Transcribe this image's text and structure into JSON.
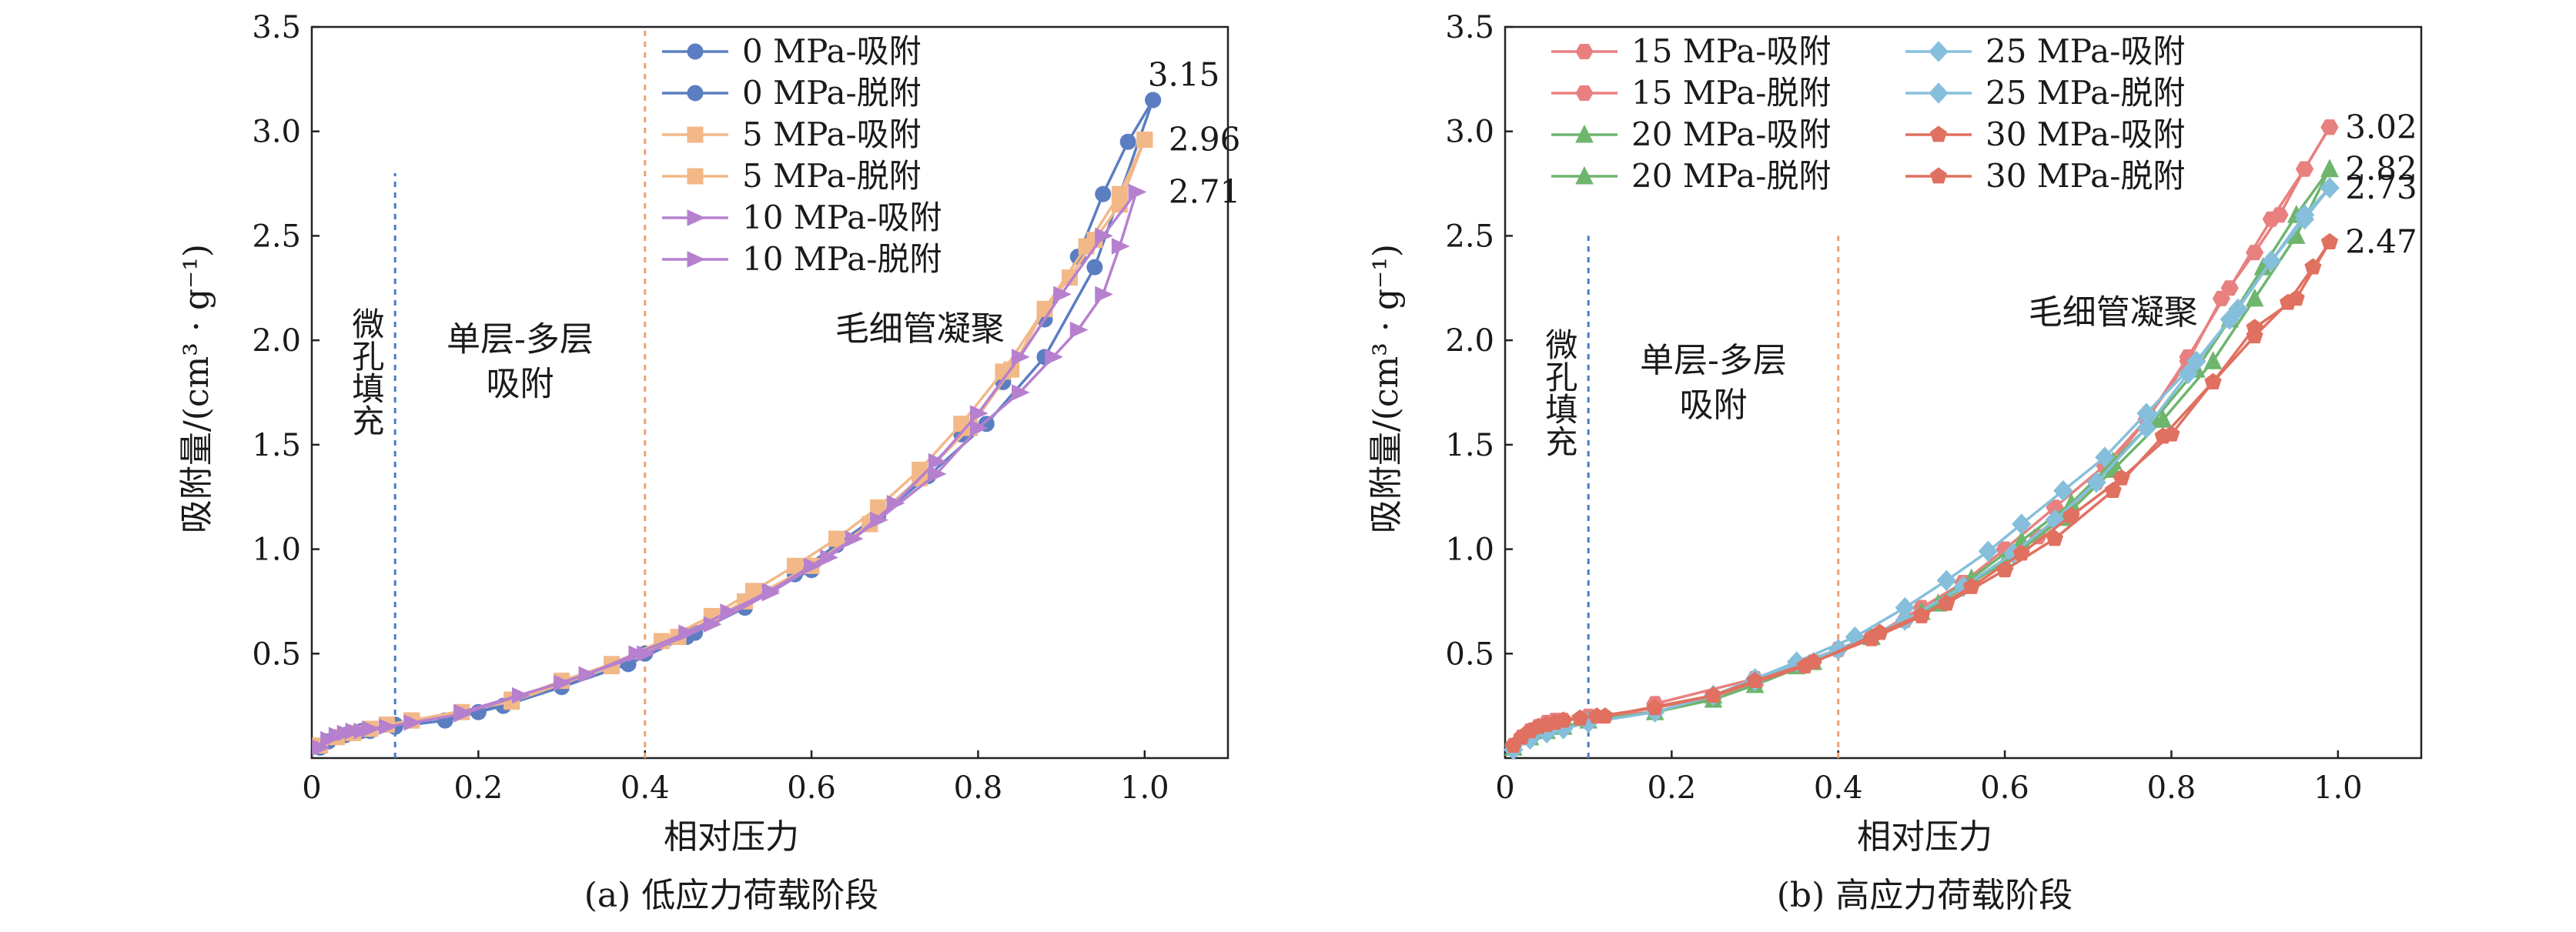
{
  "chart_data": [
    {
      "type": "line",
      "panel_label": "(a) 低应力荷载阶段",
      "xlabel": "相对压力",
      "ylabel": "吸附量/(cm³ · g⁻¹)",
      "xlim": [
        0,
        1.1
      ],
      "ylim": [
        0,
        3.5
      ],
      "x_ticks": [
        0,
        0.2,
        0.4,
        0.6,
        0.8,
        1.0
      ],
      "x_tick_labels": [
        "0",
        "0.2",
        "0.4",
        "0.6",
        "0.8",
        "1.0"
      ],
      "y_ticks": [
        0.5,
        1.0,
        1.5,
        2.0,
        2.5,
        3.0,
        3.5
      ],
      "y_tick_labels": [
        "0.5",
        "1.0",
        "1.5",
        "2.0",
        "2.5",
        "3.0",
        "3.5"
      ],
      "grid": false,
      "legend_position": "top-center",
      "legend_columns": 1,
      "vlines": [
        {
          "x": 0.1,
          "color": "#4a7bc8",
          "y_top": 2.8
        },
        {
          "x": 0.4,
          "color": "#f0a070",
          "y_top": 3.5
        }
      ],
      "region_labels": [
        {
          "lines": [
            "微孔填充"
          ],
          "x": 0.065,
          "y": 1.85,
          "vertical": true
        },
        {
          "lines": [
            "单层-多层",
            "吸附"
          ],
          "x": 0.25,
          "y": 1.95,
          "vertical": false
        },
        {
          "lines": [
            "毛细管凝聚"
          ],
          "x": 0.73,
          "y": 2.0,
          "vertical": false
        }
      ],
      "end_labels": [
        {
          "text": "3.15",
          "x": 1.0,
          "y": 3.27
        },
        {
          "text": "2.96",
          "x": 1.025,
          "y": 2.96
        },
        {
          "text": "2.71",
          "x": 1.025,
          "y": 2.71
        }
      ],
      "series": [
        {
          "name": "0 MPa-吸附",
          "color": "#5b7ec2",
          "marker": "circle",
          "x": [
            0.01,
            0.02,
            0.03,
            0.04,
            0.05,
            0.06,
            0.07,
            0.1,
            0.16,
            0.23,
            0.3,
            0.38,
            0.45,
            0.52,
            0.58,
            0.63,
            0.68,
            0.73,
            0.78,
            0.83,
            0.88,
            0.92,
            0.95,
            0.98,
            1.01
          ],
          "y": [
            0.05,
            0.08,
            0.1,
            0.11,
            0.12,
            0.13,
            0.13,
            0.15,
            0.18,
            0.25,
            0.34,
            0.45,
            0.58,
            0.72,
            0.88,
            1.02,
            1.16,
            1.34,
            1.55,
            1.8,
            2.1,
            2.4,
            2.7,
            2.95,
            3.15
          ]
        },
        {
          "name": "0 MPa-脱附",
          "color": "#5b7ec2",
          "marker": "circle",
          "x": [
            0.1,
            0.2,
            0.3,
            0.4,
            0.46,
            0.52,
            0.6,
            0.67,
            0.74,
            0.81,
            0.88,
            0.94,
            1.01
          ],
          "y": [
            0.16,
            0.22,
            0.35,
            0.5,
            0.6,
            0.75,
            0.9,
            1.12,
            1.35,
            1.6,
            1.92,
            2.35,
            3.15
          ]
        },
        {
          "name": "5 MPa-吸附",
          "color": "#f2b888",
          "marker": "square",
          "x": [
            0.01,
            0.03,
            0.05,
            0.07,
            0.09,
            0.12,
            0.18,
            0.24,
            0.3,
            0.36,
            0.42,
            0.48,
            0.53,
            0.58,
            0.63,
            0.68,
            0.73,
            0.78,
            0.83,
            0.88,
            0.93,
            0.97,
            1.0
          ],
          "y": [
            0.06,
            0.1,
            0.12,
            0.14,
            0.16,
            0.18,
            0.22,
            0.28,
            0.37,
            0.45,
            0.56,
            0.68,
            0.8,
            0.92,
            1.05,
            1.2,
            1.38,
            1.6,
            1.85,
            2.15,
            2.45,
            2.7,
            2.96
          ]
        },
        {
          "name": "5 MPa-脱附",
          "color": "#f2b888",
          "marker": "square",
          "x": [
            0.12,
            0.24,
            0.36,
            0.44,
            0.52,
            0.6,
            0.67,
            0.73,
            0.79,
            0.84,
            0.88,
            0.91,
            0.94,
            0.97,
            1.0
          ],
          "y": [
            0.18,
            0.27,
            0.44,
            0.58,
            0.75,
            0.92,
            1.12,
            1.34,
            1.58,
            1.86,
            2.15,
            2.3,
            2.48,
            2.65,
            2.96
          ]
        },
        {
          "name": "10 MPa-吸附",
          "color": "#b680cf",
          "marker": "triangle-right",
          "x": [
            0.01,
            0.02,
            0.03,
            0.04,
            0.05,
            0.06,
            0.07,
            0.09,
            0.12,
            0.18,
            0.25,
            0.33,
            0.39,
            0.45,
            0.5,
            0.55,
            0.6,
            0.65,
            0.7,
            0.75,
            0.8,
            0.85,
            0.9,
            0.95,
            0.99
          ],
          "y": [
            0.05,
            0.09,
            0.11,
            0.12,
            0.13,
            0.13,
            0.14,
            0.15,
            0.17,
            0.21,
            0.3,
            0.4,
            0.5,
            0.6,
            0.7,
            0.8,
            0.92,
            1.05,
            1.22,
            1.42,
            1.65,
            1.92,
            2.22,
            2.5,
            2.71
          ]
        },
        {
          "name": "10 MPa-脱附",
          "color": "#b680cf",
          "marker": "triangle-right",
          "x": [
            0.18,
            0.3,
            0.4,
            0.48,
            0.55,
            0.62,
            0.68,
            0.75,
            0.8,
            0.85,
            0.89,
            0.92,
            0.95,
            0.97,
            0.99
          ],
          "y": [
            0.22,
            0.36,
            0.5,
            0.64,
            0.79,
            0.96,
            1.14,
            1.36,
            1.58,
            1.75,
            1.92,
            2.05,
            2.22,
            2.45,
            2.71
          ]
        }
      ]
    },
    {
      "type": "line",
      "panel_label": "(b) 高应力荷载阶段",
      "xlabel": "相对压力",
      "ylabel": "吸附量/(cm³ · g⁻¹)",
      "xlim": [
        0,
        1.1
      ],
      "ylim": [
        0,
        3.5
      ],
      "x_ticks": [
        0,
        0.2,
        0.4,
        0.6,
        0.8,
        1.0
      ],
      "x_tick_labels": [
        "0",
        "0.2",
        "0.4",
        "0.6",
        "0.8",
        "1.0"
      ],
      "y_ticks": [
        0.5,
        1.0,
        1.5,
        2.0,
        2.5,
        3.0,
        3.5
      ],
      "y_tick_labels": [
        "0.5",
        "1.0",
        "1.5",
        "2.0",
        "2.5",
        "3.0",
        "3.5"
      ],
      "grid": false,
      "legend_position": "top-left",
      "legend_columns": 2,
      "vlines": [
        {
          "x": 0.1,
          "color": "#4a7bc8",
          "y_top": 2.5
        },
        {
          "x": 0.4,
          "color": "#f0a070",
          "y_top": 2.5
        }
      ],
      "region_labels": [
        {
          "lines": [
            "微孔填充"
          ],
          "x": 0.065,
          "y": 1.75,
          "vertical": true
        },
        {
          "lines": [
            "单层-多层",
            "吸附"
          ],
          "x": 0.25,
          "y": 1.85,
          "vertical": false
        },
        {
          "lines": [
            "毛细管凝聚"
          ],
          "x": 0.73,
          "y": 2.08,
          "vertical": false
        }
      ],
      "end_labels": [
        {
          "text": "3.02",
          "x": 1.005,
          "y": 3.02
        },
        {
          "text": "2.82",
          "x": 1.005,
          "y": 2.82
        },
        {
          "text": "2.73",
          "x": 1.005,
          "y": 2.73
        },
        {
          "text": "2.47",
          "x": 1.005,
          "y": 2.47
        }
      ],
      "series": [
        {
          "name": "15 MPa-吸附",
          "color": "#e88080",
          "marker": "hexagon",
          "x": [
            0.01,
            0.02,
            0.03,
            0.04,
            0.05,
            0.06,
            0.07,
            0.1,
            0.18,
            0.25,
            0.3,
            0.37,
            0.44,
            0.5,
            0.55,
            0.6,
            0.66,
            0.72,
            0.77,
            0.82,
            0.86,
            0.9,
            0.93,
            0.96,
            0.99
          ],
          "y": [
            0.06,
            0.1,
            0.13,
            0.15,
            0.17,
            0.18,
            0.18,
            0.2,
            0.22,
            0.29,
            0.35,
            0.46,
            0.58,
            0.72,
            0.84,
            1.0,
            1.2,
            1.4,
            1.62,
            1.9,
            2.2,
            2.42,
            2.6,
            2.82,
            3.02
          ]
        },
        {
          "name": "15 MPa-脱附",
          "color": "#e88080",
          "marker": "hexagon",
          "x": [
            0.18,
            0.3,
            0.4,
            0.48,
            0.56,
            0.64,
            0.71,
            0.77,
            0.82,
            0.87,
            0.92,
            0.96,
            0.99
          ],
          "y": [
            0.26,
            0.38,
            0.52,
            0.66,
            0.84,
            1.06,
            1.32,
            1.62,
            1.92,
            2.25,
            2.58,
            2.82,
            3.02
          ]
        },
        {
          "name": "20 MPa-吸附",
          "color": "#6eb56e",
          "marker": "triangle",
          "x": [
            0.01,
            0.03,
            0.05,
            0.07,
            0.1,
            0.18,
            0.25,
            0.3,
            0.37,
            0.44,
            0.5,
            0.56,
            0.62,
            0.68,
            0.73,
            0.78,
            0.83,
            0.87,
            0.91,
            0.95,
            0.99
          ],
          "y": [
            0.05,
            0.1,
            0.13,
            0.15,
            0.18,
            0.22,
            0.28,
            0.35,
            0.46,
            0.58,
            0.7,
            0.86,
            1.04,
            1.22,
            1.42,
            1.62,
            1.86,
            2.1,
            2.35,
            2.6,
            2.82
          ]
        },
        {
          "name": "20 MPa-脱附",
          "color": "#6eb56e",
          "marker": "triangle",
          "x": [
            0.25,
            0.35,
            0.44,
            0.52,
            0.6,
            0.67,
            0.73,
            0.79,
            0.85,
            0.9,
            0.95,
            0.99
          ],
          "y": [
            0.3,
            0.44,
            0.58,
            0.74,
            0.94,
            1.15,
            1.38,
            1.62,
            1.9,
            2.2,
            2.5,
            2.82
          ]
        },
        {
          "name": "25 MPa-吸附",
          "color": "#86bfdb",
          "marker": "diamond",
          "x": [
            0.01,
            0.03,
            0.05,
            0.07,
            0.1,
            0.18,
            0.25,
            0.3,
            0.35,
            0.42,
            0.48,
            0.53,
            0.58,
            0.62,
            0.67,
            0.72,
            0.77,
            0.83,
            0.88,
            0.92,
            0.96,
            0.99
          ],
          "y": [
            0.04,
            0.09,
            0.12,
            0.14,
            0.17,
            0.22,
            0.3,
            0.38,
            0.46,
            0.58,
            0.72,
            0.85,
            0.99,
            1.12,
            1.28,
            1.44,
            1.65,
            1.9,
            2.15,
            2.38,
            2.6,
            2.73
          ]
        },
        {
          "name": "25 MPa-脱附",
          "color": "#86bfdb",
          "marker": "diamond",
          "x": [
            0.3,
            0.4,
            0.48,
            0.55,
            0.61,
            0.66,
            0.71,
            0.77,
            0.82,
            0.87,
            0.92,
            0.96,
            0.99
          ],
          "y": [
            0.37,
            0.52,
            0.66,
            0.82,
            0.98,
            1.14,
            1.32,
            1.58,
            1.84,
            2.1,
            2.38,
            2.58,
            2.73
          ]
        },
        {
          "name": "30 MPa-吸附",
          "color": "#e07060",
          "marker": "pentagon",
          "x": [
            0.01,
            0.02,
            0.03,
            0.04,
            0.05,
            0.06,
            0.07,
            0.09,
            0.11,
            0.18,
            0.25,
            0.3,
            0.37,
            0.44,
            0.5,
            0.56,
            0.62,
            0.68,
            0.74,
            0.8,
            0.85,
            0.9,
            0.94,
            0.97,
            0.99
          ],
          "y": [
            0.06,
            0.1,
            0.13,
            0.15,
            0.16,
            0.17,
            0.18,
            0.19,
            0.2,
            0.24,
            0.3,
            0.37,
            0.46,
            0.57,
            0.68,
            0.82,
            0.98,
            1.16,
            1.34,
            1.55,
            1.8,
            2.02,
            2.18,
            2.35,
            2.47
          ]
        },
        {
          "name": "30 MPa-脱附",
          "color": "#e07060",
          "marker": "pentagon",
          "x": [
            0.12,
            0.25,
            0.36,
            0.45,
            0.53,
            0.6,
            0.66,
            0.73,
            0.79,
            0.85,
            0.9,
            0.95,
            0.99
          ],
          "y": [
            0.2,
            0.3,
            0.44,
            0.6,
            0.74,
            0.9,
            1.05,
            1.28,
            1.54,
            1.8,
            2.06,
            2.2,
            2.47
          ]
        }
      ]
    }
  ]
}
